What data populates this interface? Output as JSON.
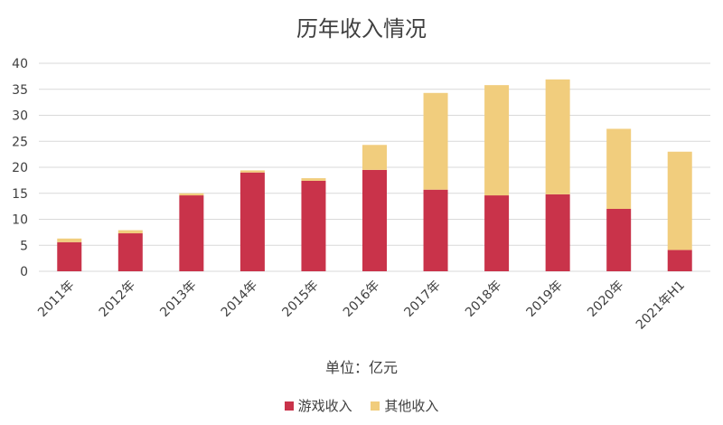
{
  "chart_data": {
    "type": "bar",
    "stacked": true,
    "title": "历年收入情况",
    "unit_label": "单位：亿元",
    "categories": [
      "2011年",
      "2012年",
      "2013年",
      "2014年",
      "2015年",
      "2016年",
      "2017年",
      "2018年",
      "2019年",
      "2020年",
      "2021年H1"
    ],
    "series": [
      {
        "name": "游戏收入",
        "color": "#c9334a",
        "values": [
          5.6,
          7.3,
          14.6,
          19.0,
          17.4,
          19.5,
          15.7,
          14.6,
          14.8,
          12.0,
          4.1
        ]
      },
      {
        "name": "其他收入",
        "color": "#f1cd7d",
        "values": [
          0.7,
          0.6,
          0.4,
          0.4,
          0.5,
          4.8,
          18.6,
          21.2,
          22.1,
          15.4,
          18.9
        ]
      }
    ],
    "ylim": [
      0,
      40
    ],
    "yticks": [
      0,
      5,
      10,
      15,
      20,
      25,
      30,
      35,
      40
    ],
    "grid": true,
    "legend_position": "bottom"
  }
}
